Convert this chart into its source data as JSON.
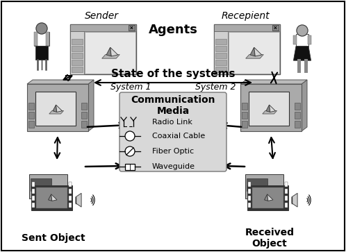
{
  "background_color": "#ffffff",
  "agents_label": "Agents",
  "state_label": "State of the systems",
  "system1_label": "System 1",
  "system2_label": "System 2",
  "sender_label": "Sender",
  "recipient_label": "Recepient",
  "sent_object_label": "Sent Object",
  "received_object_label": "Received\nObject",
  "comm_media_title": "Communication\nMedia",
  "comm_media_items": [
    "Radio Link",
    "Coaxial Cable",
    "Fiber Optic",
    "Waveguide"
  ]
}
